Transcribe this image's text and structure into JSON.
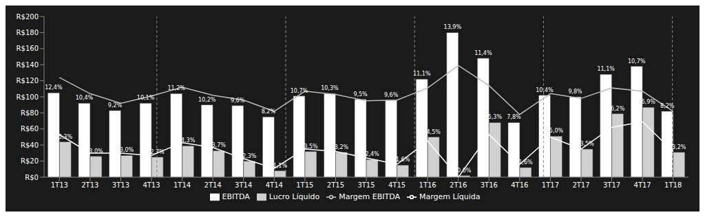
{
  "chart_data": {
    "type": "bar",
    "categories": [
      "1T13",
      "2T13",
      "3T13",
      "4T13",
      "1T14",
      "2T14",
      "3T14",
      "4T14",
      "1T15",
      "2T15",
      "3T15",
      "4T15",
      "1T16",
      "2T16",
      "3T16",
      "4T16",
      "1T17",
      "2T17",
      "3T17",
      "4T17",
      "1T18"
    ],
    "series": [
      {
        "name": "EBITDA",
        "type": "bar",
        "color": "#ffffff",
        "values": [
          105,
          92,
          83,
          92,
          104,
          90,
          89,
          75,
          101,
          104,
          97,
          96,
          122,
          180,
          148,
          68,
          102,
          100,
          128,
          138,
          82
        ]
      },
      {
        "name": "Lucro Líquido",
        "type": "bar",
        "color": "#d0d0d0",
        "values": [
          44,
          26,
          27,
          25,
          39,
          33,
          20,
          8,
          32,
          31,
          22,
          15,
          50,
          2,
          68,
          12,
          51,
          35,
          79,
          87,
          31
        ]
      },
      {
        "name": "Margem EBITDA",
        "type": "line",
        "axis": "y2",
        "color": "#bbbbbb",
        "data_labels": true,
        "values": [
          12.4,
          10.4,
          9.2,
          10.1,
          11.2,
          10.2,
          9.6,
          8.2,
          10.7,
          10.3,
          9.5,
          9.6,
          11.1,
          13.9,
          11.4,
          7.8,
          10.4,
          9.8,
          11.1,
          10.7,
          8.2
        ],
        "value_labels": [
          "12,4%",
          "10,4%",
          "9,2%",
          "10,1%",
          "11,2%",
          "10,2%",
          "9,6%",
          "8,2%",
          "10,7%",
          "10,3%",
          "9,5%",
          "9,6%",
          "11,1%",
          "13,9%",
          "11,4%",
          "7,8%",
          "10,4%",
          "9,8%",
          "11,1%",
          "10,7%",
          "8,2%"
        ]
      },
      {
        "name": "Margem Líquida",
        "type": "line",
        "axis": "y2",
        "color": "#ffffff",
        "data_labels": true,
        "values": [
          5.3,
          3.0,
          3.0,
          2.7,
          4.3,
          3.7,
          2.3,
          1.1,
          3.5,
          3.2,
          2.4,
          1.6,
          4.5,
          0.0,
          5.3,
          1.6,
          5.0,
          3.5,
          6.2,
          6.9,
          3.2
        ],
        "value_labels": [
          "5,3%",
          "3,0%",
          "3,0%",
          "2,7%",
          "4,3%",
          "3,7%",
          "2,3%",
          "1,1%",
          "3,5%",
          "3,2%",
          "2,4%",
          "1,6%",
          "4,5%",
          "0,0%",
          "5,3%",
          "1,6%",
          "5,0%",
          "3,5%",
          "6,2%",
          "6,9%",
          "3,2%"
        ]
      }
    ],
    "ylim": [
      0,
      200
    ],
    "yticks": [
      {
        "value": 0,
        "label": "R$0"
      },
      {
        "value": 20,
        "label": "R$20"
      },
      {
        "value": 40,
        "label": "R$40"
      },
      {
        "value": 60,
        "label": "R$60"
      },
      {
        "value": 80,
        "label": "R$80"
      },
      {
        "value": 100,
        "label": "R$100"
      },
      {
        "value": 120,
        "label": "R$120"
      },
      {
        "value": 140,
        "label": "R$140"
      },
      {
        "value": 160,
        "label": "R$160"
      },
      {
        "value": 180,
        "label": "R$180"
      },
      {
        "value": 200,
        "label": "R$200"
      }
    ],
    "y2lim": [
      0,
      20
    ],
    "grid": false,
    "legend": "bottom"
  }
}
